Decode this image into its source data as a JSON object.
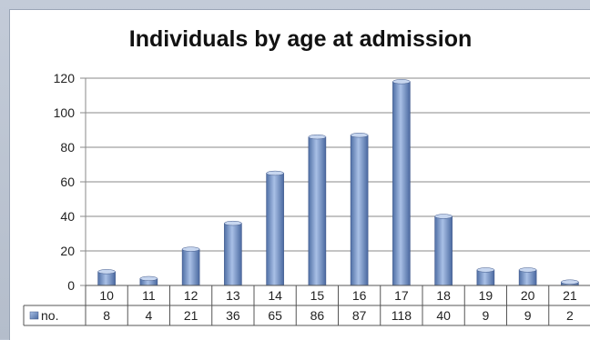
{
  "chart_data": {
    "type": "bar",
    "title": "Individuals by age at admission",
    "categories": [
      "10",
      "11",
      "12",
      "13",
      "14",
      "15",
      "16",
      "17",
      "18",
      "19",
      "20",
      "21"
    ],
    "series": [
      {
        "name": "no.",
        "values": [
          8,
          4,
          21,
          36,
          65,
          86,
          87,
          118,
          40,
          9,
          9,
          2
        ]
      }
    ],
    "ylim": [
      0,
      120
    ],
    "yticks": [
      0,
      20,
      40,
      60,
      80,
      100,
      120
    ],
    "grid": true,
    "legend": "data-table-left",
    "data_table": true,
    "bar_color": "#6f8fc2"
  }
}
